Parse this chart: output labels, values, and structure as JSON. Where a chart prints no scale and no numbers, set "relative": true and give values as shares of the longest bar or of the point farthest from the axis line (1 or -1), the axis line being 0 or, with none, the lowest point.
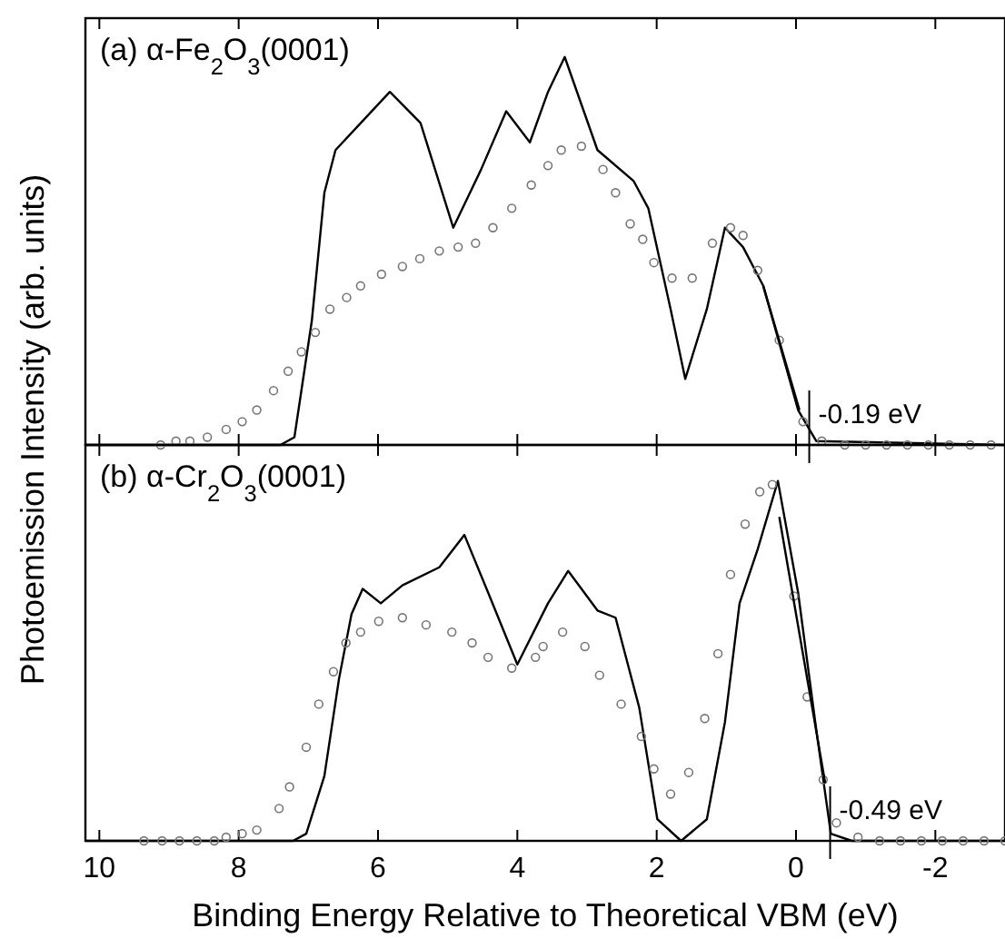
{
  "chart_data": [
    {
      "type": "line",
      "title": "(a) α-Fe$_{2}$O$_{3}$(0001)",
      "ylabel": "Photoemission Intensity (arb. units)",
      "relative": true,
      "xlim": [
        10.2,
        -3
      ],
      "xticks": [
        10,
        8,
        6,
        4,
        2,
        0,
        -2
      ],
      "tick_labels": false,
      "grid": false,
      "ref_lines": [
        {
          "axis": "x",
          "value": -0.19,
          "label": "-0.19 eV"
        }
      ],
      "series": [
        {
          "color": "#000000",
          "marker": "none",
          "x": [
            10.2,
            7.4,
            7.2,
            6.95,
            6.77,
            6.61,
            6.35,
            5.83,
            5.39,
            4.92,
            4.52,
            4.16,
            3.82,
            3.56,
            3.32,
            2.85,
            2.33,
            2.12,
            1.8,
            1.59,
            1.28,
            1.02,
            0.76,
            0.47,
            -0.03,
            -0.29,
            -3
          ],
          "values": [
            0,
            0,
            0.02,
            0.32,
            0.65,
            0.76,
            0.81,
            0.91,
            0.83,
            0.56,
            0.71,
            0.86,
            0.78,
            0.91,
            1.0,
            0.76,
            0.68,
            0.61,
            0.35,
            0.17,
            0.35,
            0.56,
            0.51,
            0.41,
            0.09,
            0.01,
            0
          ]
        },
        {
          "type": "scatter",
          "color": "#777777",
          "marker": "circle",
          "x": [
            9.12,
            8.9,
            8.7,
            8.45,
            8.18,
            7.95,
            7.74,
            7.5,
            7.29,
            7.1,
            6.9,
            6.69,
            6.45,
            6.25,
            5.95,
            5.65,
            5.4,
            5.12,
            4.85,
            4.6,
            4.35,
            4.08,
            3.8,
            3.56,
            3.37,
            3.08,
            2.77,
            2.59,
            2.38,
            2.2,
            2.04,
            1.78,
            1.49,
            1.2,
            0.94,
            0.76,
            0.55,
            0.24,
            -0.1,
            -0.37,
            -0.7,
            -1.0,
            -1.3,
            -1.6,
            -1.9,
            -2.2,
            -2.5,
            -2.8
          ],
          "values": [
            0,
            0.01,
            0.01,
            0.02,
            0.04,
            0.06,
            0.09,
            0.14,
            0.19,
            0.24,
            0.29,
            0.35,
            0.38,
            0.41,
            0.44,
            0.46,
            0.48,
            0.5,
            0.51,
            0.52,
            0.56,
            0.61,
            0.67,
            0.72,
            0.76,
            0.77,
            0.71,
            0.65,
            0.57,
            0.53,
            0.47,
            0.43,
            0.43,
            0.52,
            0.56,
            0.54,
            0.45,
            0.27,
            0.06,
            0.01,
            0,
            0,
            0,
            0,
            0,
            0,
            0,
            0
          ]
        },
        {
          "color": "#000000",
          "marker": "none",
          "x": [
            0.47,
            -0.05
          ],
          "values": [
            0.41,
            0.09
          ]
        }
      ]
    },
    {
      "type": "line",
      "title": "(b) α-Cr$_{2}$O$_{3}$(0001)",
      "xlabel": "Binding Energy Relative to Theoretical VBM (eV)",
      "relative": true,
      "xlim": [
        10.2,
        -3
      ],
      "xticks": [
        10,
        8,
        6,
        4,
        2,
        0,
        -2
      ],
      "tick_labels": "x",
      "grid": false,
      "ref_lines": [
        {
          "axis": "x",
          "value": -0.49,
          "label": "-0.49 eV"
        }
      ],
      "series": [
        {
          "color": "#000000",
          "marker": "none",
          "x": [
            10.2,
            7.22,
            7.03,
            6.77,
            6.56,
            6.38,
            6.22,
            5.96,
            5.65,
            5.12,
            4.76,
            4.42,
            4.0,
            3.56,
            3.27,
            2.85,
            2.59,
            2.25,
            1.99,
            1.65,
            1.28,
            1.02,
            0.81,
            0.55,
            0.26,
            -0.03,
            -0.29,
            -0.5,
            -0.8,
            -3
          ],
          "values": [
            0,
            0,
            0.02,
            0.18,
            0.45,
            0.63,
            0.7,
            0.66,
            0.71,
            0.76,
            0.85,
            0.69,
            0.49,
            0.66,
            0.75,
            0.64,
            0.62,
            0.37,
            0.06,
            0,
            0.06,
            0.33,
            0.66,
            0.81,
            1.0,
            0.69,
            0.31,
            0.02,
            0,
            0
          ]
        },
        {
          "type": "scatter",
          "color": "#777777",
          "marker": "circle",
          "x": [
            9.36,
            9.1,
            8.85,
            8.6,
            8.35,
            8.18,
            7.95,
            7.74,
            7.42,
            7.27,
            7.03,
            6.85,
            6.64,
            6.46,
            6.25,
            5.99,
            5.65,
            5.31,
            4.94,
            4.65,
            4.42,
            4.08,
            3.74,
            3.63,
            3.35,
            3.03,
            2.82,
            2.51,
            2.22,
            2.04,
            1.8,
            1.54,
            1.31,
            1.12,
            0.94,
            0.73,
            0.52,
            0.34,
            0.03,
            -0.16,
            -0.39,
            -0.58,
            -0.89,
            -1.2,
            -1.5,
            -1.8,
            -2.1,
            -2.4,
            -2.7,
            -3.0
          ],
          "values": [
            0,
            0,
            0,
            0,
            0,
            0.01,
            0.02,
            0.03,
            0.09,
            0.15,
            0.26,
            0.38,
            0.47,
            0.55,
            0.58,
            0.61,
            0.62,
            0.6,
            0.58,
            0.55,
            0.51,
            0.48,
            0.51,
            0.54,
            0.58,
            0.54,
            0.46,
            0.38,
            0.29,
            0.2,
            0.13,
            0.19,
            0.34,
            0.52,
            0.74,
            0.88,
            0.97,
            0.99,
            0.68,
            0.4,
            0.17,
            0.05,
            0.01,
            0,
            0,
            0,
            0,
            0,
            0,
            0
          ]
        },
        {
          "color": "#000000",
          "marker": "none",
          "x": [
            0.24,
            -0.42
          ],
          "values": [
            0.9,
            0.16
          ]
        }
      ]
    }
  ]
}
